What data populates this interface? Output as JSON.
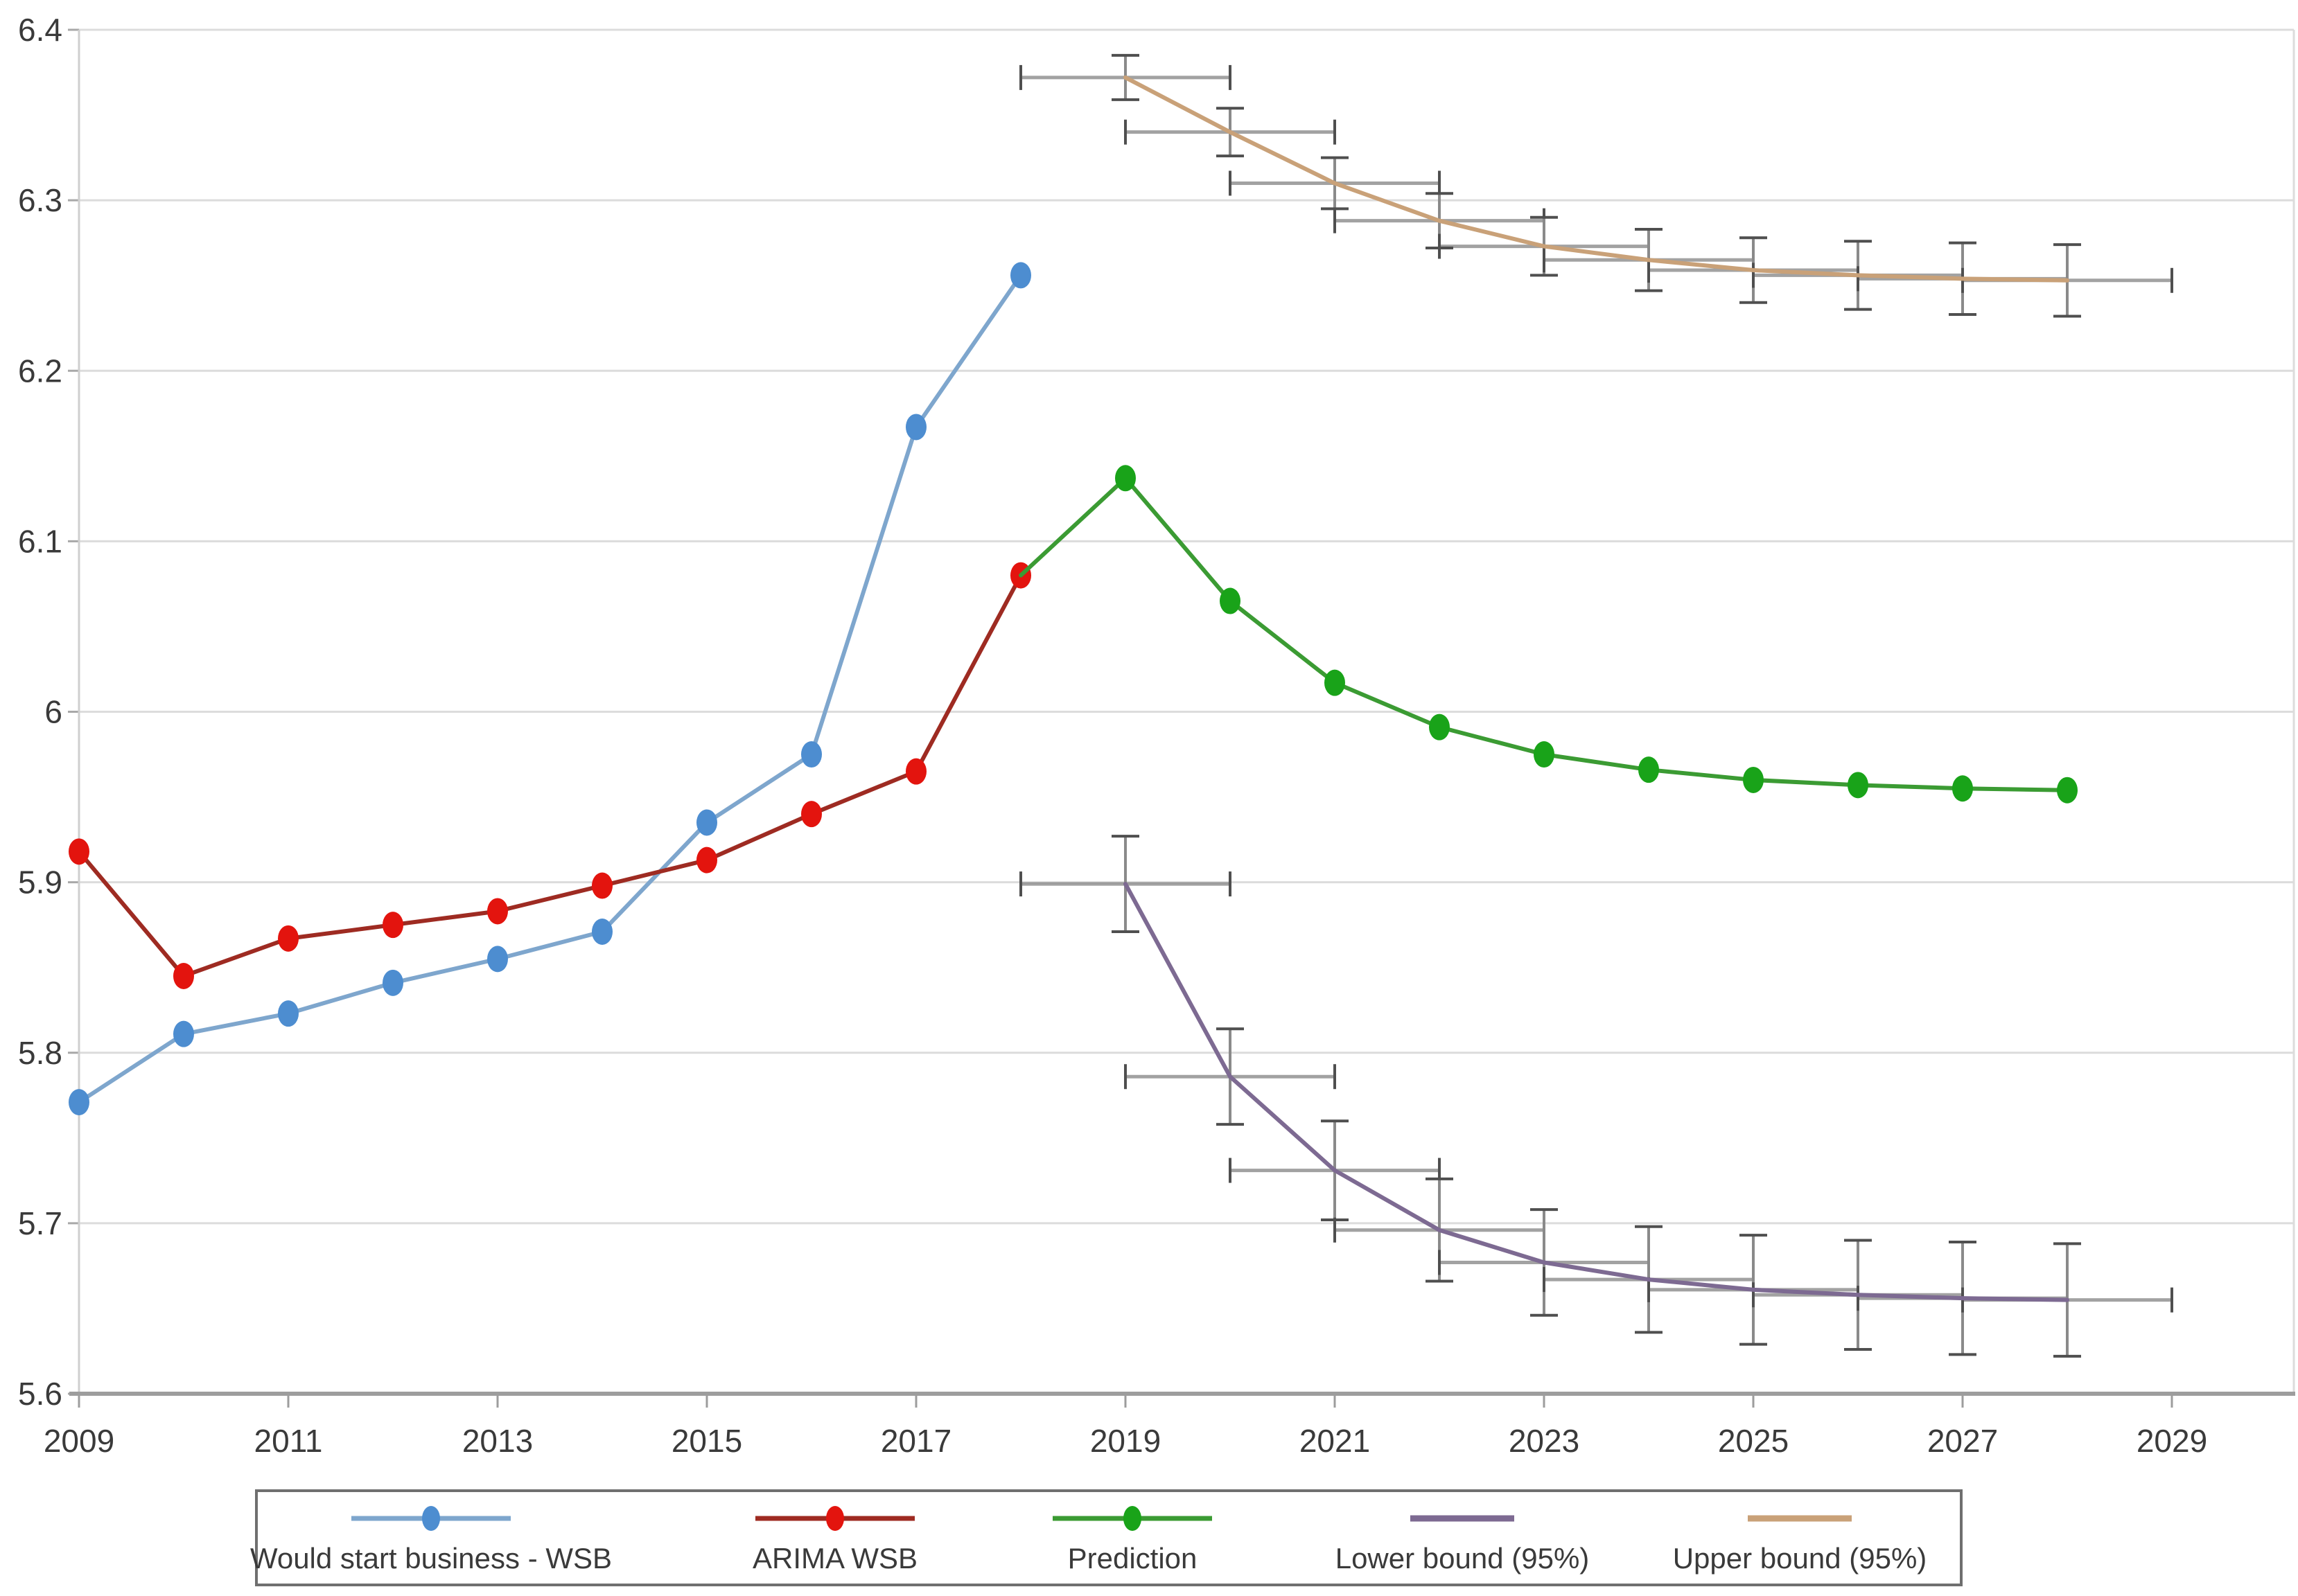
{
  "chart_data": {
    "type": "line",
    "title": "",
    "xlabel": "",
    "ylabel": "",
    "grid": true,
    "legend_position": "bottom",
    "x_axis": {
      "range": [
        2009,
        2030.2
      ],
      "ticks": [
        2009,
        2011,
        2013,
        2015,
        2017,
        2019,
        2021,
        2023,
        2025,
        2027,
        2029
      ]
    },
    "y_axis": {
      "range": [
        5.6,
        6.4
      ],
      "tick_values": [
        6.4,
        6.3,
        6.2,
        6.1,
        6.0,
        5.9,
        5.8,
        5.7,
        5.6
      ],
      "tick_labels": [
        "6.4",
        "6.3",
        "6.2",
        "6.1",
        "6",
        "5.9",
        "5.8",
        "5.7",
        "5.6"
      ]
    },
    "series": [
      {
        "name": "Would start business - WSB",
        "x": [
          2009,
          2010,
          2011,
          2012,
          2013,
          2014,
          2015,
          2016,
          2017,
          2018
        ],
        "y": [
          5.771,
          5.811,
          5.823,
          5.841,
          5.855,
          5.871,
          5.935,
          5.975,
          6.167,
          6.256
        ],
        "line_color": "#7EA6CD",
        "marker_color": "#4D8DD0",
        "has_markers": true
      },
      {
        "name": "ARIMA WSB",
        "x": [
          2009,
          2010,
          2011,
          2012,
          2013,
          2014,
          2015,
          2016,
          2017,
          2018
        ],
        "y": [
          5.918,
          5.845,
          5.867,
          5.875,
          5.883,
          5.898,
          5.913,
          5.94,
          5.965,
          6.08
        ],
        "line_color": "#9E2B22",
        "marker_color": "#E3140E",
        "has_markers": true
      },
      {
        "name": "Prediction",
        "x": [
          2018,
          2019,
          2020,
          2021,
          2022,
          2023,
          2024,
          2025,
          2026,
          2027,
          2028
        ],
        "y": [
          6.08,
          6.137,
          6.065,
          6.017,
          5.991,
          5.975,
          5.966,
          5.96,
          5.957,
          5.955,
          5.954
        ],
        "line_color": "#3B9B33",
        "marker_color": "#19A319",
        "has_markers": true,
        "marker_skip_first": true
      },
      {
        "name": "Lower bound (95%)",
        "x": [
          2019,
          2020,
          2021,
          2022,
          2023,
          2024,
          2025,
          2026,
          2027,
          2028
        ],
        "y": [
          5.899,
          5.786,
          5.731,
          5.696,
          5.677,
          5.667,
          5.661,
          5.658,
          5.656,
          5.655
        ],
        "error_y": [
          0.028,
          0.028,
          0.029,
          0.03,
          0.031,
          0.031,
          0.032,
          0.032,
          0.033,
          0.033
        ],
        "error_x": 1,
        "line_color": "#7D6A92",
        "has_markers": false
      },
      {
        "name": "Upper bound (95%)",
        "x": [
          2019,
          2020,
          2021,
          2022,
          2023,
          2024,
          2025,
          2026,
          2027,
          2028
        ],
        "y": [
          6.372,
          6.34,
          6.31,
          6.288,
          6.273,
          6.265,
          6.259,
          6.256,
          6.254,
          6.253
        ],
        "error_y": [
          0.013,
          0.014,
          0.015,
          0.016,
          0.017,
          0.018,
          0.019,
          0.02,
          0.021,
          0.021
        ],
        "error_x": 1,
        "line_color": "#C9A178",
        "has_markers": false
      }
    ]
  },
  "legend": {
    "items": [
      {
        "label": "Would start business - WSB",
        "line_color": "#7EA6CD",
        "marker_color": "#4D8DD0"
      },
      {
        "label": "ARIMA WSB",
        "line_color": "#9E2B22",
        "marker_color": "#E3140E"
      },
      {
        "label": "Prediction",
        "line_color": "#3B9B33",
        "marker_color": "#19A319"
      },
      {
        "label": "Lower bound (95%)",
        "line_color": "#7D6A92",
        "marker_color": null
      },
      {
        "label": "Upper bound (95%)",
        "line_color": "#C9A178",
        "marker_color": null
      }
    ]
  },
  "colors": {
    "background": "#ffffff",
    "gridline": "#DCDCDC",
    "y_axis_line": "#CFCFCF",
    "x_axis_line": "#9D9D9D",
    "tick": "#A8A8A8",
    "error_bar": "#8A8A8A",
    "error_cap": "#4F4F4F",
    "axis_text": "#3A3A3A",
    "legend_border": "#6F6F6F"
  }
}
